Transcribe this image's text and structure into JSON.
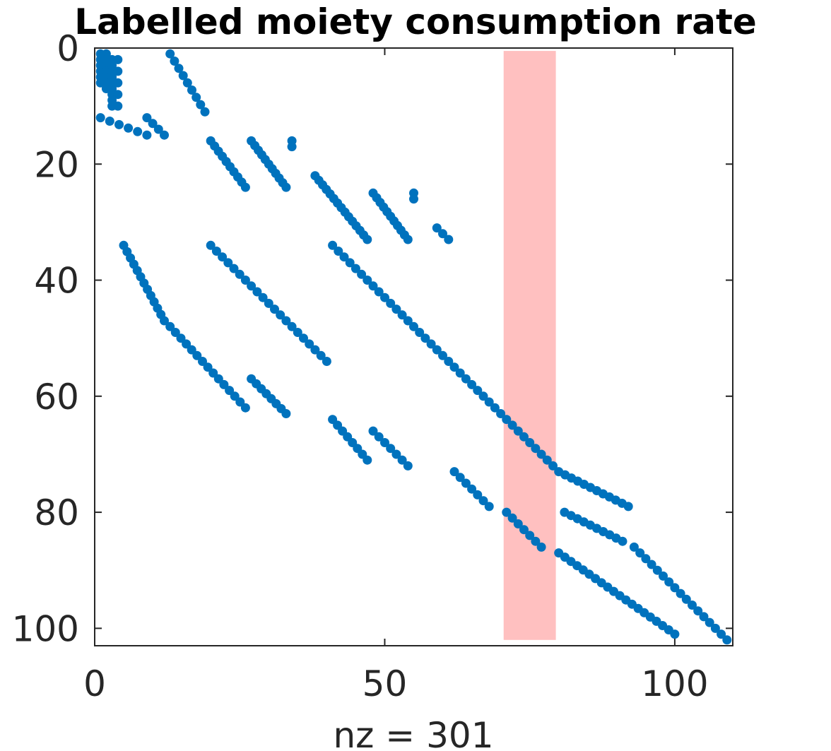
{
  "chart_data": {
    "type": "scatter",
    "title": "Labelled moiety consumption rate",
    "xlabel": "nz = 301",
    "ylabel": "",
    "xlim": [
      0,
      110
    ],
    "ylim": [
      0,
      103
    ],
    "y_reversed": true,
    "xticks": [
      0,
      50,
      100
    ],
    "yticks": [
      0,
      20,
      40,
      60,
      80,
      100
    ],
    "grid": false,
    "marker_color": "#0072BD",
    "highlight_color": "#FF9999",
    "highlight_region": {
      "x_start": 70.5,
      "x_end": 79.5,
      "y_start": 0.5,
      "y_end": 102
    },
    "segments": [
      {
        "x0": 1,
        "y0": 1,
        "x1": 1,
        "y1": 6,
        "n": 6
      },
      {
        "x0": 2,
        "y0": 1,
        "x1": 2,
        "y1": 7,
        "n": 7
      },
      {
        "x0": 3,
        "y0": 2,
        "x1": 3,
        "y1": 10,
        "n": 9
      },
      {
        "x0": 4,
        "y0": 2,
        "x1": 4,
        "y1": 10,
        "n": 5
      },
      {
        "x0": 1,
        "y0": 12,
        "x1": 9,
        "y1": 15,
        "n": 6
      },
      {
        "x0": 9,
        "y0": 12,
        "x1": 12,
        "y1": 15,
        "n": 4
      },
      {
        "x0": 13,
        "y0": 1,
        "x1": 19,
        "y1": 11,
        "n": 9
      },
      {
        "x0": 20,
        "y0": 16,
        "x1": 26,
        "y1": 24,
        "n": 10
      },
      {
        "x0": 27,
        "y0": 16,
        "x1": 33,
        "y1": 24,
        "n": 11
      },
      {
        "x0": 34,
        "y0": 16,
        "x1": 34,
        "y1": 17,
        "n": 2
      },
      {
        "x0": 38,
        "y0": 22,
        "x1": 47,
        "y1": 33,
        "n": 15
      },
      {
        "x0": 48,
        "y0": 25,
        "x1": 54,
        "y1": 33,
        "n": 11
      },
      {
        "x0": 55,
        "y0": 25,
        "x1": 55,
        "y1": 26,
        "n": 2
      },
      {
        "x0": 59,
        "y0": 31,
        "x1": 61,
        "y1": 33,
        "n": 3
      },
      {
        "x0": 5,
        "y0": 34,
        "x1": 12,
        "y1": 47,
        "n": 13
      },
      {
        "x0": 20,
        "y0": 34,
        "x1": 40,
        "y1": 54,
        "n": 21
      },
      {
        "x0": 13,
        "y0": 48,
        "x1": 26,
        "y1": 62,
        "n": 15
      },
      {
        "x0": 27,
        "y0": 57,
        "x1": 33,
        "y1": 63,
        "n": 8
      },
      {
        "x0": 41,
        "y0": 34,
        "x1": 79,
        "y1": 72,
        "n": 39
      },
      {
        "x0": 41,
        "y0": 64,
        "x1": 47,
        "y1": 71,
        "n": 8
      },
      {
        "x0": 48,
        "y0": 66,
        "x1": 54,
        "y1": 72,
        "n": 7
      },
      {
        "x0": 62,
        "y0": 73,
        "x1": 68,
        "y1": 79,
        "n": 7
      },
      {
        "x0": 71,
        "y0": 80,
        "x1": 77,
        "y1": 86,
        "n": 7
      },
      {
        "x0": 80,
        "y0": 73,
        "x1": 92,
        "y1": 79,
        "n": 12
      },
      {
        "x0": 81,
        "y0": 80,
        "x1": 91,
        "y1": 85,
        "n": 10
      },
      {
        "x0": 80,
        "y0": 87,
        "x1": 100,
        "y1": 101,
        "n": 20
      },
      {
        "x0": 93,
        "y0": 86,
        "x1": 109,
        "y1": 102,
        "n": 17
      }
    ]
  }
}
